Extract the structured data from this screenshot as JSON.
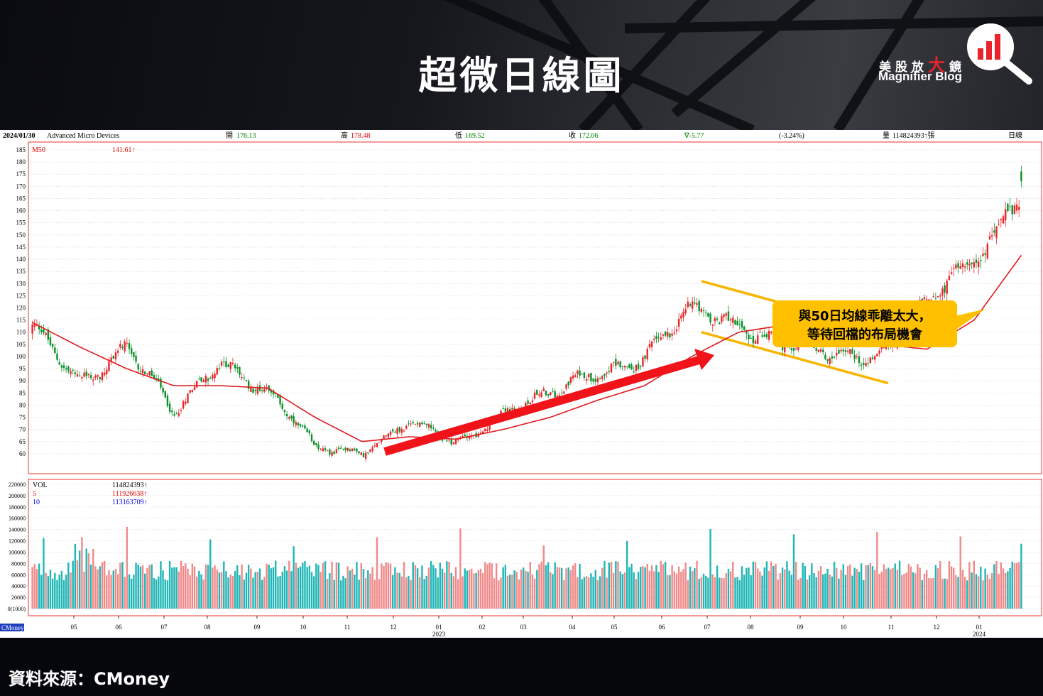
{
  "title": "超微日線圖",
  "logo": {
    "cn_left": "美股放",
    "cn_big": "大",
    "cn_right": "鏡",
    "en": "Magnifier Blog",
    "icon": "magnifier-bar-chart-icon"
  },
  "source": "資料來源：CMoney",
  "info_bar": {
    "date": "2024/01/30",
    "name": "Advanced Micro Devices",
    "open_label": "開",
    "open": "176.13",
    "high_label": "高",
    "high": "178.48",
    "low_label": "低",
    "low": "169.52",
    "close_label": "收",
    "close": "172.06",
    "change": "∇-5.77",
    "change_pct": "(-3.24%)",
    "volume_label": "量",
    "volume": "114824393↑張",
    "period": "日線"
  },
  "legend": {
    "ma_label": "M50",
    "ma_value": "141.61↑",
    "vol_label": "VOL",
    "vol_value": "114824393↑",
    "v5_label": "5",
    "v5_value": "111926638↑",
    "v10_label": "10",
    "v10_value": "113163709↑"
  },
  "annotation": {
    "line1": "與50日均線乖離太大，",
    "line2": "等待回檔的布局機會"
  },
  "cmoney_tag": "CMoney",
  "colors": {
    "up": "#e8262a",
    "down": "#0a8f2a",
    "ma": "#e0191d",
    "vol_up": "#f08a8a",
    "vol_down": "#1fb6b6",
    "channel": "#f7b500",
    "arrow": "#f0141a",
    "callout": "#ffc000"
  },
  "chart_data": {
    "type": "candlestick",
    "price_axis": {
      "min": 55,
      "max": 185,
      "ticks": [
        185,
        180,
        175,
        170,
        165,
        160,
        155,
        150,
        145,
        140,
        135,
        130,
        125,
        120,
        115,
        110,
        105,
        100,
        95,
        90,
        85,
        80,
        75,
        70,
        65,
        60
      ]
    },
    "volume_axis": {
      "min": 0,
      "max": 220000,
      "ticks": [
        "220000",
        "200000",
        "180000",
        "160000",
        "140000",
        "120000",
        "100000",
        "80000",
        "60000",
        "40000",
        "20000",
        "0(1000)"
      ]
    },
    "month_labels": [
      "05",
      "06",
      "07",
      "08",
      "09",
      "10",
      "11",
      "12",
      "01",
      "02",
      "03",
      "04",
      "05",
      "06",
      "07",
      "08",
      "09",
      "10",
      "11",
      "12",
      "01"
    ],
    "year_labels": [
      {
        "month_index": 8,
        "year": "2023"
      },
      {
        "month_index": 20,
        "year": "2024"
      }
    ],
    "close_anchors": [
      {
        "month": "04",
        "close": 110
      },
      {
        "month": "05",
        "close": 90
      },
      {
        "month": "06",
        "close": 105
      },
      {
        "month": "07",
        "close": 75
      },
      {
        "month": "08",
        "close": 100
      },
      {
        "month": "09",
        "close": 85
      },
      {
        "month": "10",
        "close": 62
      },
      {
        "month": "11",
        "close": 62
      },
      {
        "month": "12",
        "close": 72
      },
      {
        "month": "01",
        "close": 64
      },
      {
        "month": "02",
        "close": 78
      },
      {
        "month": "03",
        "close": 83
      },
      {
        "month": "04",
        "close": 95
      },
      {
        "month": "05",
        "close": 100
      },
      {
        "month": "06",
        "close": 118
      },
      {
        "month": "07",
        "close": 115
      },
      {
        "month": "08",
        "close": 104
      },
      {
        "month": "09",
        "close": 100
      },
      {
        "month": "10",
        "close": 103
      },
      {
        "month": "11",
        "close": 120
      },
      {
        "month": "12",
        "close": 140
      },
      {
        "month": "01",
        "close": 172
      }
    ],
    "ma50_anchors": [
      {
        "month": "04",
        "value": 114
      },
      {
        "month": "05",
        "value": 104
      },
      {
        "month": "06",
        "value": 95
      },
      {
        "month": "07",
        "value": 88
      },
      {
        "month": "08",
        "value": 88
      },
      {
        "month": "09",
        "value": 87
      },
      {
        "month": "10",
        "value": 75
      },
      {
        "month": "11",
        "value": 65
      },
      {
        "month": "12",
        "value": 67
      },
      {
        "month": "01",
        "value": 66
      },
      {
        "month": "02",
        "value": 70
      },
      {
        "month": "03",
        "value": 75
      },
      {
        "month": "04",
        "value": 82
      },
      {
        "month": "05",
        "value": 88
      },
      {
        "month": "06",
        "value": 100
      },
      {
        "month": "07",
        "value": 110
      },
      {
        "month": "08",
        "value": 113
      },
      {
        "month": "09",
        "value": 108
      },
      {
        "month": "10",
        "value": 105
      },
      {
        "month": "11",
        "value": 103
      },
      {
        "month": "12",
        "value": 115
      },
      {
        "month": "01",
        "value": 141.61
      }
    ],
    "channel": {
      "upper": [
        {
          "month": "06",
          "value": 131
        },
        {
          "month": "11",
          "value": 110
        }
      ],
      "lower": [
        {
          "month": "06",
          "value": 110
        },
        {
          "month": "11",
          "value": 89
        }
      ]
    },
    "last_bar": {
      "date": "2024/01/30",
      "open": 176.13,
      "high": 178.48,
      "low": 169.52,
      "close": 172.06,
      "volume": 114824393
    }
  }
}
